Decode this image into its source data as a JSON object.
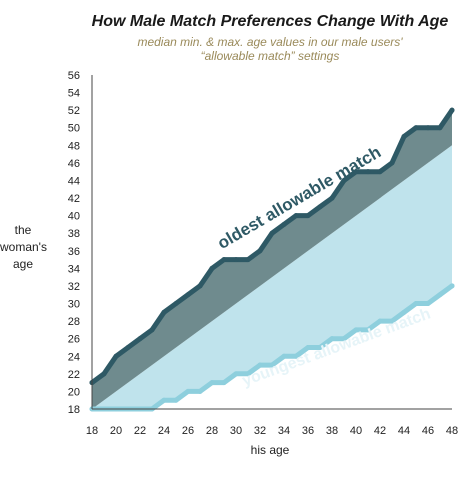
{
  "chart_data": {
    "type": "area",
    "title": "How Male Match Preferences Change With Age",
    "subtitle_line1": "median min. & max. age values in our male users'",
    "subtitle_line2": "“allowable match” settings",
    "xlabel": "his age",
    "ylabel_lines": [
      "the",
      "woman's",
      "age"
    ],
    "xlim": [
      18,
      48
    ],
    "ylim": [
      18,
      56
    ],
    "x_ticks": [
      18,
      20,
      22,
      24,
      26,
      28,
      30,
      32,
      34,
      36,
      38,
      40,
      42,
      44,
      46,
      48
    ],
    "y_ticks": [
      18,
      20,
      22,
      24,
      26,
      28,
      30,
      32,
      34,
      36,
      38,
      40,
      42,
      44,
      46,
      48,
      50,
      52,
      54,
      56
    ],
    "grid": false,
    "x": [
      18,
      19,
      20,
      21,
      22,
      23,
      24,
      25,
      26,
      27,
      28,
      29,
      30,
      31,
      32,
      33,
      34,
      35,
      36,
      37,
      38,
      39,
      40,
      41,
      42,
      43,
      44,
      45,
      46,
      47,
      48
    ],
    "series": [
      {
        "name": "oldest allowable match",
        "color": "#2e5965",
        "values": [
          21,
          22,
          24,
          25,
          26,
          27,
          29,
          30,
          31,
          32,
          34,
          35,
          35,
          35,
          36,
          38,
          39,
          40,
          40,
          41,
          42,
          44,
          45,
          45,
          45,
          46,
          49,
          50,
          50,
          50,
          52
        ]
      },
      {
        "name": "youngest allowable match",
        "color": "#8ecfdd",
        "values": [
          18,
          18,
          18,
          18,
          18,
          18,
          19,
          19,
          20,
          20,
          21,
          21,
          22,
          22,
          23,
          23,
          24,
          24,
          25,
          25,
          26,
          26,
          27,
          27,
          28,
          28,
          29,
          30,
          30,
          31,
          32
        ]
      }
    ],
    "reference_line": {
      "description": "his own age (y = x)",
      "from": [
        18,
        18
      ],
      "to": [
        48,
        48
      ]
    },
    "band_upper_color": "#6f8b8e",
    "band_lower_color": "#bfe3ec",
    "axis_line_color": "#444444"
  }
}
